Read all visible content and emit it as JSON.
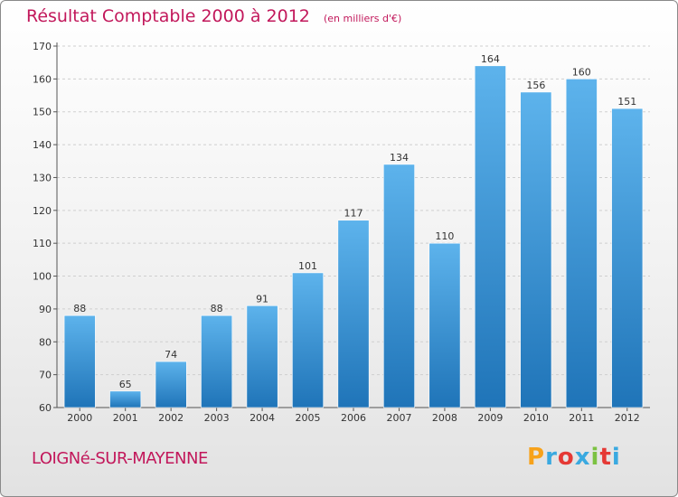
{
  "header": {
    "title": "Résultat Comptable 2000 à 2012",
    "subtitle": "(en milliers d'€)"
  },
  "footer": {
    "commune": "LOIGNé-SUR-MAYENNE",
    "brand": "Proxiti",
    "brand_colors": [
      "#f7a21b",
      "#3aa9e0",
      "#e53935",
      "#3aa9e0",
      "#7cc242",
      "#e53935",
      "#3aa9e0"
    ]
  },
  "colors": {
    "title": "#c2185b",
    "bar_top": "#5db3ec",
    "bar_bottom": "#1f74b8",
    "label": "#333333"
  },
  "chart_data": {
    "type": "bar",
    "title": "Résultat Comptable 2000 à 2012",
    "subtitle": "(en milliers d'€)",
    "categories": [
      "2000",
      "2001",
      "2002",
      "2003",
      "2004",
      "2005",
      "2006",
      "2007",
      "2008",
      "2009",
      "2010",
      "2011",
      "2012"
    ],
    "values": [
      88,
      65,
      74,
      88,
      91,
      101,
      117,
      134,
      110,
      164,
      156,
      160,
      151
    ],
    "ylim": [
      60,
      170
    ],
    "yticks": [
      60,
      70,
      80,
      90,
      100,
      110,
      120,
      130,
      140,
      150,
      160,
      170
    ],
    "grid": true,
    "data_labels": true
  }
}
